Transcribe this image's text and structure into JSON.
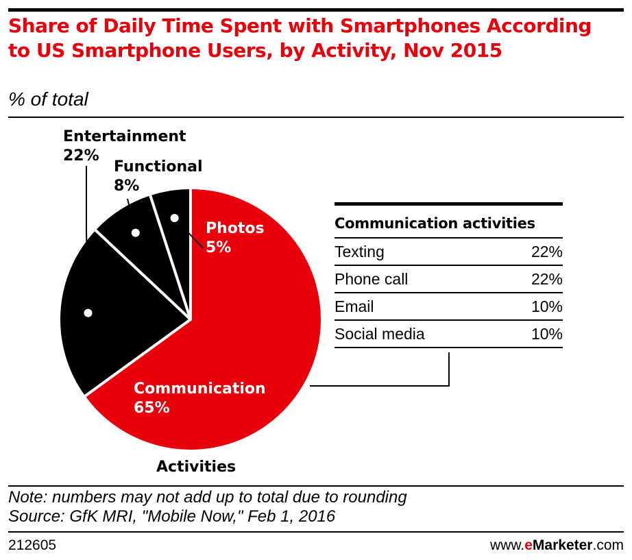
{
  "header": {
    "title": "Share of Daily Time Spent with Smartphones According to US Smartphone Users, by Activity, Nov 2015",
    "subtitle": "% of total"
  },
  "chart_data": {
    "type": "pie",
    "title": "Share of Daily Time Spent with Smartphones According to US Smartphone Users, by Activity, Nov 2015",
    "subtitle": "% of total",
    "slices": [
      {
        "label": "Communication",
        "value": 65,
        "display": "65%",
        "color": "#e8000b"
      },
      {
        "label": "Entertainment",
        "value": 22,
        "display": "22%",
        "color": "#000000"
      },
      {
        "label": "Functional",
        "value": 8,
        "display": "8%",
        "color": "#000000"
      },
      {
        "label": "Photos",
        "value": 5,
        "display": "5%",
        "color": "#000000"
      }
    ],
    "group_label": "Activities",
    "breakdown": {
      "title": "Communication activities",
      "rows": [
        {
          "label": "Texting",
          "value": "22%"
        },
        {
          "label": "Phone call",
          "value": "22%"
        },
        {
          "label": "Email",
          "value": "10%"
        },
        {
          "label": "Social media",
          "value": "10%"
        }
      ]
    }
  },
  "footer": {
    "note": "Note: numbers may not add up to total due to rounding",
    "source": "Source: GfK MRI, \"Mobile Now,\" Feb 1, 2016",
    "chart_id": "212605",
    "brand_prefix": "www.",
    "brand_e": "e",
    "brand_name": "Marketer",
    "brand_suffix": ".com"
  },
  "colors": {
    "accent": "#e8000b",
    "dark": "#000000"
  }
}
